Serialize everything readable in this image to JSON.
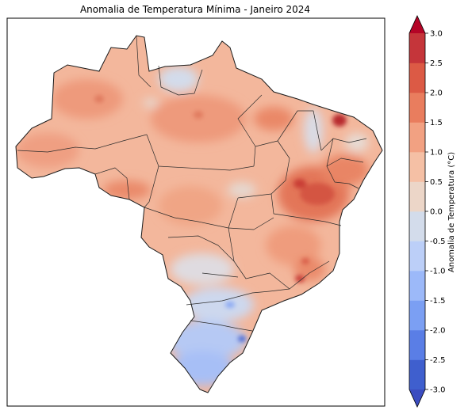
{
  "map": {
    "title": "Anomalia de Temperatura Mínima - Janeiro 2024"
  },
  "colorbar": {
    "label": "Anomalia de Temperatura (°C)",
    "min": -3.0,
    "max": 3.0,
    "ticks": [
      "3.0",
      "2.5",
      "2.0",
      "1.5",
      "1.0",
      "0.5",
      "0.0",
      "-0.5",
      "-1.0",
      "-1.5",
      "-2.0",
      "-2.5",
      "-3.0"
    ],
    "band_colors": [
      "#3f5fce",
      "#5a7ee6",
      "#7b9ff3",
      "#9cb9f9",
      "#bccff8",
      "#d3dceb",
      "#ecd6c8",
      "#f5c0a5",
      "#f2a182",
      "#e97d5e",
      "#dc5a45",
      "#c5353a"
    ],
    "extend_low_color": "#3b4cc0",
    "extend_high_color": "#b40426"
  }
}
